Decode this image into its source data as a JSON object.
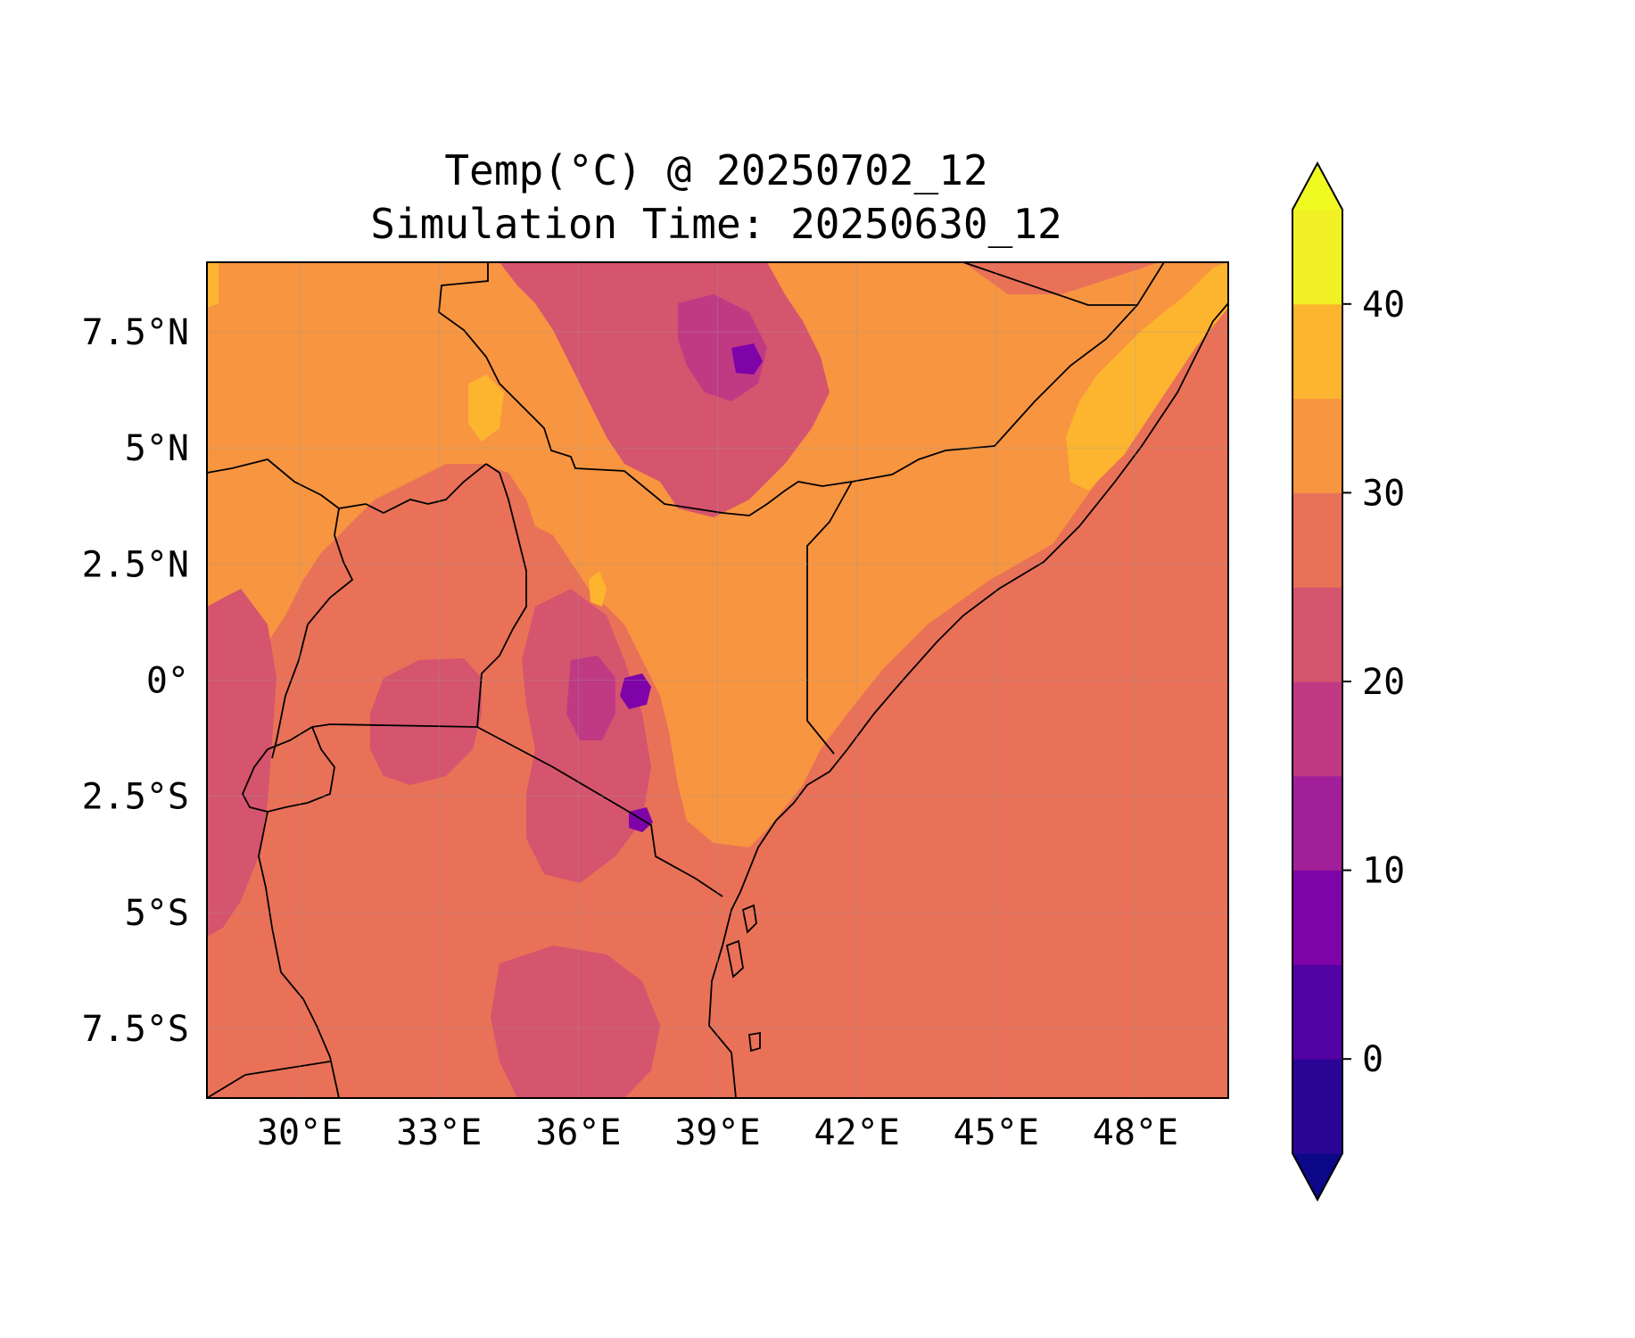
{
  "title": {
    "line1": "Temp(°C) @ 20250702_12",
    "line2": "Simulation Time: 20250630_12"
  },
  "map": {
    "type": "filled-contour-map",
    "variable": "Temp(°C)",
    "lon_range": [
      28.0,
      50.0
    ],
    "lat_range": [
      -9.0,
      9.0
    ],
    "x_ticks": [
      {
        "value": 30,
        "label": "30°E"
      },
      {
        "value": 33,
        "label": "33°E"
      },
      {
        "value": 36,
        "label": "36°E"
      },
      {
        "value": 39,
        "label": "39°E"
      },
      {
        "value": 42,
        "label": "42°E"
      },
      {
        "value": 45,
        "label": "45°E"
      },
      {
        "value": 48,
        "label": "48°E"
      }
    ],
    "y_ticks": [
      {
        "value": 7.5,
        "label": "7.5°N"
      },
      {
        "value": 5,
        "label": "5°N"
      },
      {
        "value": 2.5,
        "label": "2.5°N"
      },
      {
        "value": 0,
        "label": "0°"
      },
      {
        "value": -2.5,
        "label": "2.5°S"
      },
      {
        "value": -5,
        "label": "5°S"
      },
      {
        "value": -7.5,
        "label": "7.5°S"
      }
    ],
    "gridlines": true,
    "colormap": "plasma"
  },
  "colorbar": {
    "extend": "both",
    "levels": [
      -5,
      0,
      5,
      10,
      15,
      20,
      25,
      30,
      35,
      40,
      45
    ],
    "colors": [
      "#0d0887",
      "#2a0593",
      "#5302a3",
      "#7e03a8",
      "#a21f9a",
      "#c03a83",
      "#d5546e",
      "#e97158",
      "#f89540",
      "#fdb42f",
      "#f1f125",
      "#f0f921"
    ],
    "ticks": [
      {
        "value": 0,
        "label": "0"
      },
      {
        "value": 10,
        "label": "10"
      },
      {
        "value": 20,
        "label": "20"
      },
      {
        "value": 30,
        "label": "30"
      },
      {
        "value": 40,
        "label": "40"
      }
    ]
  }
}
